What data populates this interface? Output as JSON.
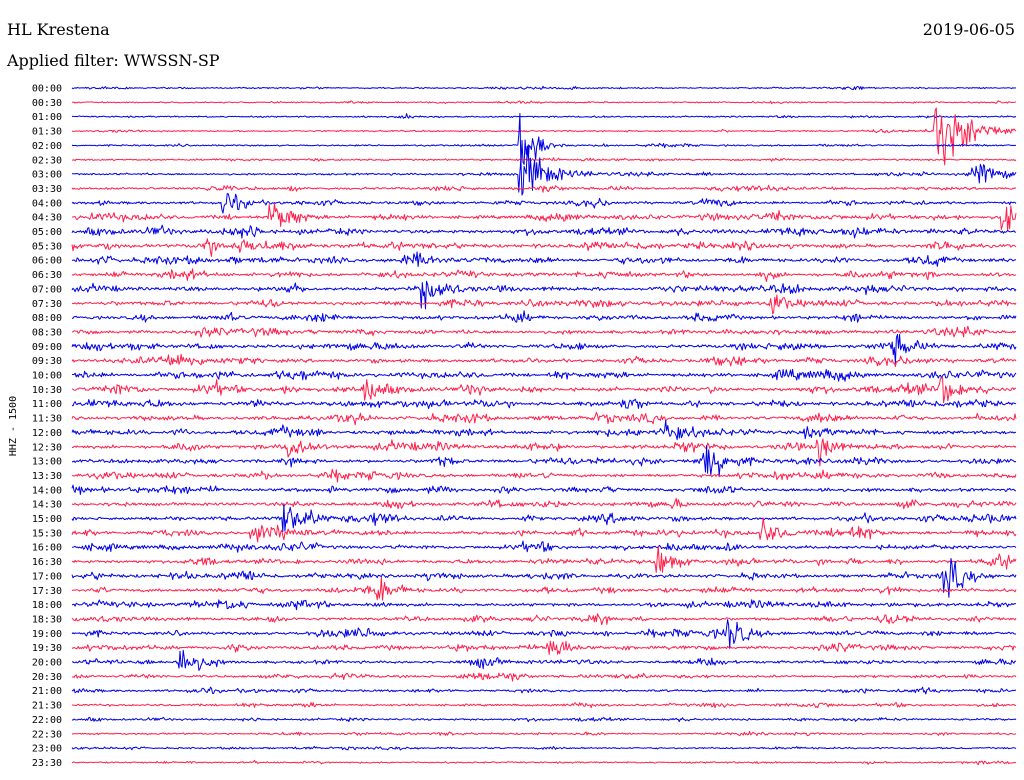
{
  "header": {
    "station": "HL Krestena",
    "date": "2019-06-05",
    "filter": "Applied filter: WWSSN-SP"
  },
  "chart_data": {
    "type": "line",
    "title": "HL Krestena",
    "subtitle": "Applied filter: WWSSN-SP",
    "ylabel": "HHZ - 1500",
    "colors": {
      "even": "#0000e6",
      "odd": "#ff1f4b"
    },
    "rows": [
      "00:00",
      "00:30",
      "01:00",
      "01:30",
      "02:00",
      "02:30",
      "03:00",
      "03:30",
      "04:00",
      "04:30",
      "05:00",
      "05:30",
      "06:00",
      "06:30",
      "07:00",
      "07:30",
      "08:00",
      "08:30",
      "09:00",
      "09:30",
      "10:00",
      "10:30",
      "11:00",
      "11:30",
      "12:00",
      "12:30",
      "13:00",
      "13:30",
      "14:00",
      "14:30",
      "15:00",
      "15:30",
      "16:00",
      "16:30",
      "17:00",
      "17:30",
      "18:00",
      "18:30",
      "19:00",
      "19:30",
      "20:00",
      "20:30",
      "21:00",
      "21:30",
      "22:00",
      "22:30",
      "23:00",
      "23:30"
    ],
    "activity": [
      0.12,
      0.1,
      0.14,
      0.15,
      0.16,
      0.2,
      0.35,
      0.55,
      0.7,
      0.9,
      1.0,
      0.95,
      0.95,
      0.9,
      0.95,
      0.9,
      0.85,
      0.85,
      0.95,
      0.9,
      1.0,
      1.0,
      1.0,
      0.9,
      0.95,
      0.9,
      0.9,
      0.85,
      0.85,
      0.85,
      0.9,
      0.9,
      0.85,
      0.85,
      0.9,
      0.85,
      0.8,
      0.8,
      0.8,
      0.75,
      0.65,
      0.55,
      0.45,
      0.4,
      0.35,
      0.25,
      0.22,
      0.18
    ],
    "events": [
      {
        "row": 4,
        "t": 0.475,
        "amp": 9.0,
        "dur": 0.01
      },
      {
        "row": 6,
        "t": 0.475,
        "amp": 5.0,
        "dur": 0.02
      },
      {
        "row": 3,
        "t": 0.915,
        "amp": 5.5,
        "dur": 0.03
      },
      {
        "row": 6,
        "t": 0.955,
        "amp": 3.0,
        "dur": 0.02
      },
      {
        "row": 8,
        "t": 0.16,
        "amp": 2.8,
        "dur": 0.01
      },
      {
        "row": 9,
        "t": 0.21,
        "amp": 3.0,
        "dur": 0.015
      },
      {
        "row": 9,
        "t": 0.985,
        "amp": 2.5,
        "dur": 0.015
      },
      {
        "row": 11,
        "t": 0.14,
        "amp": 2.0,
        "dur": 0.01
      },
      {
        "row": 14,
        "t": 0.37,
        "amp": 2.5,
        "dur": 0.02
      },
      {
        "row": 15,
        "t": 0.74,
        "amp": 2.0,
        "dur": 0.015
      },
      {
        "row": 18,
        "t": 0.87,
        "amp": 2.0,
        "dur": 0.01
      },
      {
        "row": 21,
        "t": 0.31,
        "amp": 2.2,
        "dur": 0.02
      },
      {
        "row": 21,
        "t": 0.92,
        "amp": 2.0,
        "dur": 0.015
      },
      {
        "row": 24,
        "t": 0.63,
        "amp": 2.0,
        "dur": 0.015
      },
      {
        "row": 25,
        "t": 0.23,
        "amp": 2.5,
        "dur": 0.015
      },
      {
        "row": 26,
        "t": 0.67,
        "amp": 2.8,
        "dur": 0.02
      },
      {
        "row": 25,
        "t": 0.79,
        "amp": 2.2,
        "dur": 0.015
      },
      {
        "row": 30,
        "t": 0.225,
        "amp": 2.5,
        "dur": 0.015
      },
      {
        "row": 31,
        "t": 0.19,
        "amp": 1.8,
        "dur": 0.02
      },
      {
        "row": 31,
        "t": 0.73,
        "amp": 2.0,
        "dur": 0.015
      },
      {
        "row": 33,
        "t": 0.62,
        "amp": 2.0,
        "dur": 0.015
      },
      {
        "row": 34,
        "t": 0.925,
        "amp": 2.5,
        "dur": 0.015
      },
      {
        "row": 35,
        "t": 0.325,
        "amp": 1.4,
        "dur": 0.015
      },
      {
        "row": 38,
        "t": 0.695,
        "amp": 2.5,
        "dur": 0.015
      },
      {
        "row": 39,
        "t": 0.505,
        "amp": 1.6,
        "dur": 0.015
      },
      {
        "row": 40,
        "t": 0.115,
        "amp": 2.5,
        "dur": 0.015
      }
    ]
  }
}
